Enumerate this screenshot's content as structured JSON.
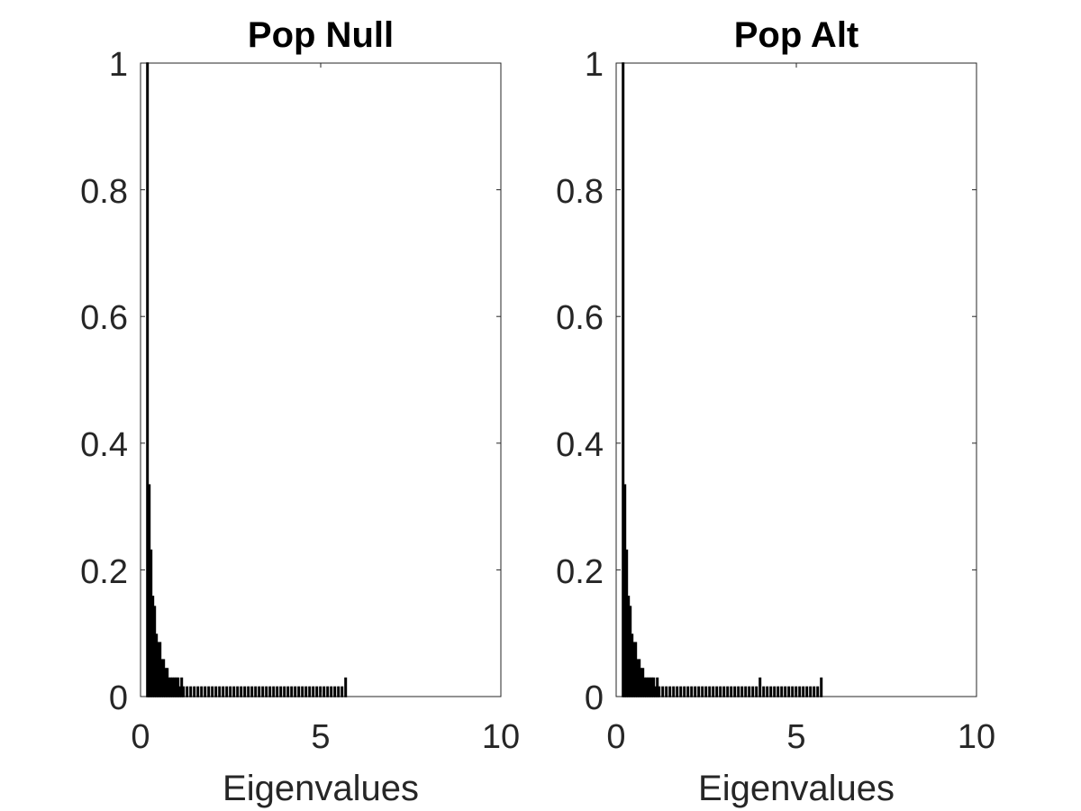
{
  "chart_data": [
    {
      "type": "bar",
      "title": "Pop Null",
      "xlabel": "Eigenvalues",
      "ylabel": "",
      "xlim": [
        0,
        10
      ],
      "ylim": [
        0,
        1
      ],
      "xticks": [
        "0",
        "5",
        "10"
      ],
      "yticks": [
        "0",
        "0.2",
        "0.4",
        "0.6",
        "0.8",
        "1"
      ],
      "bar_color": "#000000",
      "grid": false,
      "x": [
        0.2,
        0.25,
        0.3,
        0.35,
        0.4,
        0.45,
        0.5,
        0.55,
        0.6,
        0.65,
        0.7,
        0.75,
        0.8,
        0.85,
        0.9,
        0.95,
        1.0,
        1.05,
        1.1,
        1.15,
        1.2,
        1.3,
        1.4,
        1.5,
        1.6,
        1.7,
        1.8,
        1.9,
        2.0,
        2.1,
        2.2,
        2.3,
        2.4,
        2.5,
        2.6,
        2.7,
        2.8,
        2.9,
        3.0,
        3.1,
        3.2,
        3.3,
        3.4,
        3.5,
        3.6,
        3.7,
        3.8,
        3.9,
        4.0,
        4.1,
        4.2,
        4.3,
        4.4,
        4.5,
        4.6,
        4.7,
        4.8,
        4.9,
        5.0,
        5.1,
        5.2,
        5.3,
        5.4,
        5.5,
        5.6,
        5.7
      ],
      "values": [
        1.0,
        0.334,
        0.231,
        0.158,
        0.142,
        0.098,
        0.085,
        0.085,
        0.058,
        0.058,
        0.044,
        0.044,
        0.029,
        0.029,
        0.029,
        0.029,
        0.029,
        0.029,
        0.015,
        0.029,
        0.015,
        0.015,
        0.015,
        0.015,
        0.015,
        0.015,
        0.015,
        0.015,
        0.015,
        0.015,
        0.015,
        0.015,
        0.015,
        0.015,
        0.015,
        0.015,
        0.015,
        0.015,
        0.015,
        0.015,
        0.015,
        0.015,
        0.015,
        0.015,
        0.015,
        0.015,
        0.015,
        0.015,
        0.015,
        0.015,
        0.015,
        0.015,
        0.015,
        0.015,
        0.015,
        0.015,
        0.015,
        0.015,
        0.015,
        0.015,
        0.015,
        0.015,
        0.015,
        0.015,
        0.015,
        0.029
      ]
    },
    {
      "type": "bar",
      "title": "Pop Alt",
      "xlabel": "Eigenvalues",
      "ylabel": "",
      "xlim": [
        0,
        10
      ],
      "ylim": [
        0,
        1
      ],
      "xticks": [
        "0",
        "5",
        "10"
      ],
      "yticks": [
        "0",
        "0.2",
        "0.4",
        "0.6",
        "0.8",
        "1"
      ],
      "bar_color": "#000000",
      "grid": false,
      "x": [
        0.2,
        0.25,
        0.3,
        0.35,
        0.4,
        0.45,
        0.5,
        0.55,
        0.6,
        0.65,
        0.7,
        0.75,
        0.8,
        0.85,
        0.9,
        0.95,
        1.0,
        1.05,
        1.1,
        1.15,
        1.2,
        1.3,
        1.4,
        1.5,
        1.6,
        1.7,
        1.8,
        1.9,
        2.0,
        2.1,
        2.2,
        2.3,
        2.4,
        2.5,
        2.6,
        2.7,
        2.8,
        2.9,
        3.0,
        3.1,
        3.2,
        3.3,
        3.4,
        3.5,
        3.6,
        3.7,
        3.8,
        3.9,
        4.0,
        4.1,
        4.2,
        4.3,
        4.4,
        4.5,
        4.6,
        4.7,
        4.8,
        4.9,
        5.0,
        5.1,
        5.2,
        5.3,
        5.4,
        5.5,
        5.6,
        5.7
      ],
      "values": [
        1.0,
        0.334,
        0.231,
        0.158,
        0.142,
        0.098,
        0.085,
        0.085,
        0.058,
        0.058,
        0.044,
        0.044,
        0.029,
        0.029,
        0.029,
        0.029,
        0.029,
        0.029,
        0.015,
        0.029,
        0.015,
        0.015,
        0.015,
        0.015,
        0.015,
        0.015,
        0.015,
        0.015,
        0.015,
        0.015,
        0.015,
        0.015,
        0.015,
        0.015,
        0.015,
        0.015,
        0.015,
        0.015,
        0.015,
        0.015,
        0.015,
        0.015,
        0.015,
        0.015,
        0.015,
        0.015,
        0.015,
        0.015,
        0.029,
        0.015,
        0.015,
        0.015,
        0.015,
        0.015,
        0.015,
        0.015,
        0.015,
        0.015,
        0.015,
        0.015,
        0.015,
        0.015,
        0.015,
        0.015,
        0.015,
        0.029
      ]
    }
  ]
}
